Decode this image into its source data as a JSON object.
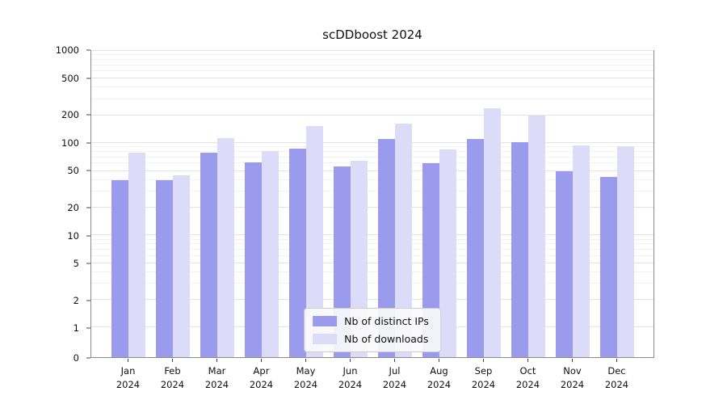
{
  "chart_data": {
    "type": "bar",
    "title": "scDDboost 2024",
    "categories": [
      "Jan",
      "Feb",
      "Mar",
      "Apr",
      "May",
      "Jun",
      "Jul",
      "Aug",
      "Sep",
      "Oct",
      "Nov",
      "Dec"
    ],
    "year_label": "2024",
    "series": [
      {
        "name": "Nb of distinct IPs",
        "color": "#9b9bee",
        "values": [
          40,
          40,
          78,
          62,
          88,
          56,
          112,
          60,
          110,
          102,
          50,
          43
        ]
      },
      {
        "name": "Nb of downloads",
        "color": "#dcdcf8",
        "values": [
          78,
          45,
          113,
          82,
          152,
          64,
          163,
          85,
          240,
          200,
          95,
          93
        ]
      }
    ],
    "y_ticks": [
      0,
      1,
      2,
      5,
      10,
      20,
      50,
      100,
      200,
      500,
      1000
    ],
    "y_minor_gridlines": [
      3,
      4,
      6,
      7,
      8,
      9,
      30,
      40,
      60,
      70,
      80,
      90,
      300,
      400,
      600,
      700,
      800,
      900
    ],
    "ylim": [
      0,
      1000
    ],
    "scale": "log",
    "grid": true,
    "legend_position": "lower center"
  }
}
